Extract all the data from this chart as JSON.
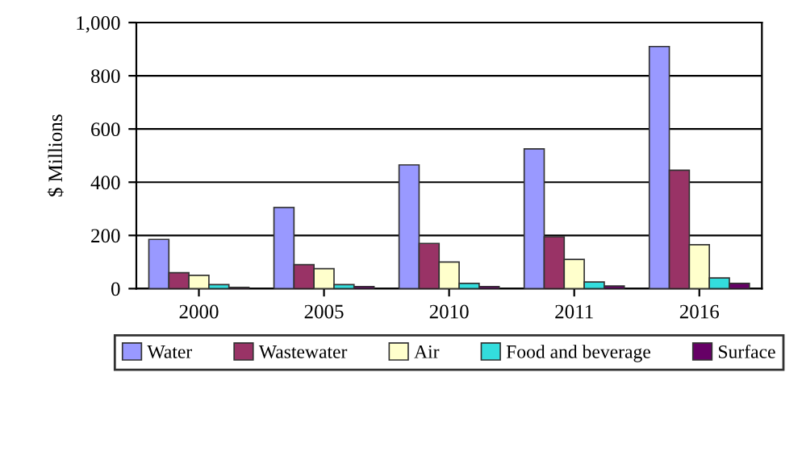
{
  "chart_data": {
    "type": "bar",
    "ylabel": "$ Millions",
    "categories": [
      "2000",
      "2005",
      "2010",
      "2011",
      "2016"
    ],
    "series": [
      {
        "name": "Water",
        "color": "#9999ff",
        "values": [
          185,
          305,
          465,
          525,
          910
        ]
      },
      {
        "name": "Wastewater",
        "color": "#993366",
        "values": [
          60,
          90,
          170,
          195,
          445
        ]
      },
      {
        "name": "Air",
        "color": "#ffffcc",
        "values": [
          50,
          75,
          100,
          110,
          165
        ]
      },
      {
        "name": "Food and beverage",
        "color": "#33dddd",
        "values": [
          15,
          15,
          20,
          25,
          40
        ]
      },
      {
        "name": "Surface",
        "color": "#660066",
        "values": [
          5,
          8,
          8,
          10,
          20
        ]
      }
    ],
    "ylim": [
      0,
      1000
    ],
    "yticks": [
      0,
      200,
      400,
      600,
      800,
      {
        "value": 1000,
        "label": "1,000"
      }
    ],
    "grid": "y",
    "legend": "bottom"
  }
}
